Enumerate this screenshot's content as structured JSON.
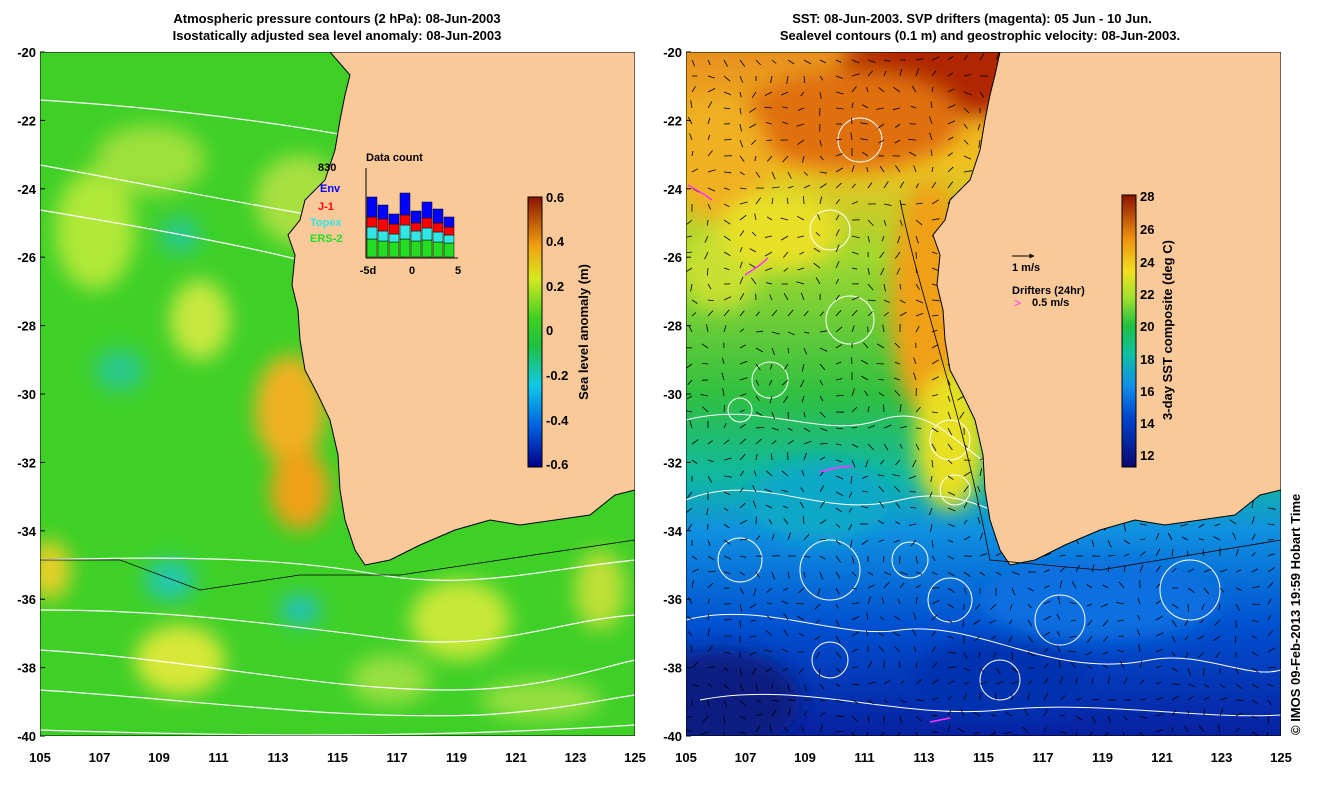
{
  "left_panel": {
    "title_line1": "Atmospheric pressure contours (2 hPa): 08-Jun-2003",
    "title_line2": "Isostatically adjusted sea level anomaly: 08-Jun-2003",
    "inset": {
      "count": "830",
      "title": "Data count",
      "legend": [
        {
          "label": "Env",
          "color": "#0000ff"
        },
        {
          "label": "J-1",
          "color": "#ff0000"
        },
        {
          "label": "Topex",
          "color": "#33e6e6"
        },
        {
          "label": "ERS-2",
          "color": "#22dd22"
        }
      ],
      "xticks": [
        "-5d",
        "0",
        "5"
      ]
    },
    "colorbar": {
      "label": "Sea level anomaly (m)",
      "ticks": [
        "0.6",
        "0.4",
        "0.2",
        "0",
        "-0.2",
        "-0.4",
        "-0.6"
      ]
    }
  },
  "right_panel": {
    "title_line1": "SST: 08-Jun-2003. SVP drifters (magenta): 05 Jun - 10 Jun.",
    "title_line2": "Sealevel contours (0.1 m) and geostrophic velocity: 08-Jun-2003.",
    "velocity_key": "1 m/s",
    "drifter_title": "Drifters (24hr)",
    "drifter_key": "0.5 m/s",
    "colorbar": {
      "label": "3-day SST composite (deg C)",
      "ticks": [
        "28",
        "26",
        "24",
        "22",
        "20",
        "18",
        "16",
        "14",
        "12"
      ]
    }
  },
  "axes": {
    "y_ticks": [
      "-20",
      "-22",
      "-24",
      "-26",
      "-28",
      "-30",
      "-32",
      "-34",
      "-36",
      "-38",
      "-40"
    ],
    "x_ticks": [
      "105",
      "107",
      "109",
      "111",
      "113",
      "115",
      "117",
      "119",
      "121",
      "123",
      "125"
    ]
  },
  "credit": "© IMOS 09-Feb-2013 19:59 Hobart Time",
  "colors": {
    "land": "#f9c99a",
    "ocean_green": "#33d633",
    "magenta": "#ff33ff"
  }
}
